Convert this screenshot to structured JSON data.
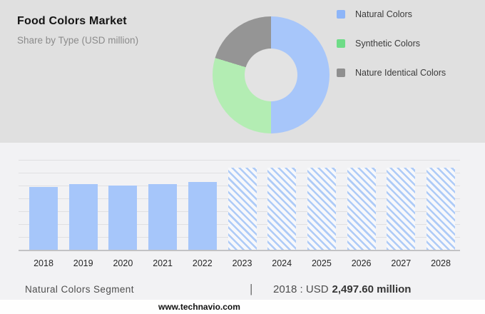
{
  "header": {
    "title": "Food Colors Market",
    "subtitle": "Share by Type (USD million)"
  },
  "legend": {
    "swatch_colors": [
      "#8db5f8",
      "#6edc87",
      "#8f8f8f"
    ]
  },
  "caption": {
    "segment_label": "Natural Colors Segment",
    "separator": "|",
    "stat_prefix": "2018 : USD",
    "stat_value": "2,497.60 million"
  },
  "footer": {
    "url": "www.technavio.com"
  },
  "colors": {
    "header_bg": "#e0e0e0",
    "panel_bg": "#f2f2f4",
    "footer_bg": "#fefefe",
    "donut_hole": "#e3e3e3",
    "bar_blue": "#a6c6fa",
    "grid_line": "#e0e0e2",
    "axis_line": "#c2c2c4",
    "hatch_line": "#aecbf7",
    "hatch_gap": "#f7f8fb"
  },
  "chart_data": [
    {
      "type": "pie",
      "subtype": "donut",
      "title": "Food Colors Market — Share by Type (USD million)",
      "labels": [
        "Natural Colors",
        "Synthetic Colors",
        "Nature Identical Colors"
      ],
      "values_pct": [
        50,
        29.7,
        20.3
      ],
      "colors": [
        "#a7c6fa",
        "#b3edb3",
        "#959595"
      ],
      "legend_position": "right",
      "note": "Shares estimated from arc angles; donut starts at 12 o'clock, clockwise"
    },
    {
      "type": "bar",
      "categories": [
        "2018",
        "2019",
        "2020",
        "2021",
        "2022",
        "2023",
        "2024",
        "2025",
        "2026",
        "2027",
        "2028"
      ],
      "values": [
        2497.6,
        2608,
        2541,
        2617,
        2696,
        3252,
        3252,
        3252,
        3252,
        3252,
        3252
      ],
      "unit": "USD million",
      "value_note": "Only 2018 is labeled (USD 2,497.60 million); other values estimated from bar heights; 2023-2028 drawn as hatched forecast bars",
      "ylim": [
        0,
        3575
      ],
      "gridline_count": 8,
      "grid": true,
      "forecast_start": "2023",
      "bar_color": "#a6c6fa",
      "xlabel": "",
      "ylabel": ""
    }
  ]
}
